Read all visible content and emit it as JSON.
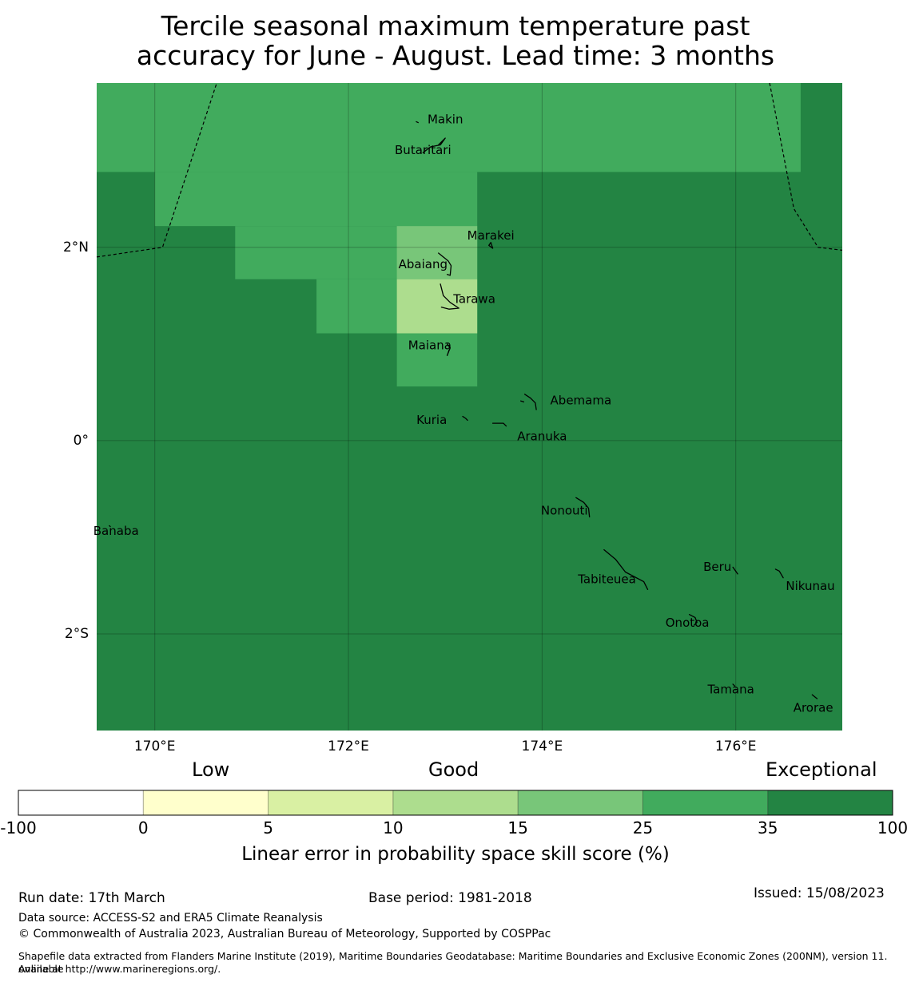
{
  "title": {
    "line1": "Tercile seasonal maximum temperature past",
    "line2": "accuracy for June - August. Lead time: 3 months"
  },
  "map": {
    "lon_range": [
      169.4,
      177.1
    ],
    "lat_range": [
      -3.0,
      3.7
    ],
    "lat_ticks": [
      {
        "value": 2,
        "label": "2°N"
      },
      {
        "value": 0,
        "label": "0°"
      },
      {
        "value": -2,
        "label": "2°S"
      }
    ],
    "lon_ticks": [
      {
        "value": 170,
        "label": "170°E"
      },
      {
        "value": 172,
        "label": "172°E"
      },
      {
        "value": 174,
        "label": "174°E"
      },
      {
        "value": 176,
        "label": "176°E"
      }
    ],
    "background_color": "#238443",
    "skill_cells": [
      {
        "lon0": 169.4,
        "lon1": 176.67,
        "lat0": 2.78,
        "lat1": 3.7,
        "color": "#41ab5d"
      },
      {
        "lon0": 170.0,
        "lon1": 173.33,
        "lat0": 2.22,
        "lat1": 2.78,
        "color": "#41ab5d"
      },
      {
        "lon0": 170.83,
        "lon1": 173.33,
        "lat0": 1.67,
        "lat1": 2.22,
        "color": "#41ab5d"
      },
      {
        "lon0": 171.67,
        "lon1": 173.33,
        "lat0": 1.11,
        "lat1": 1.67,
        "color": "#41ab5d"
      },
      {
        "lon0": 172.5,
        "lon1": 173.33,
        "lat0": 0.56,
        "lat1": 1.11,
        "color": "#41ab5d"
      },
      {
        "lon0": 172.5,
        "lon1": 173.33,
        "lat0": 1.67,
        "lat1": 2.22,
        "color": "#78c679"
      },
      {
        "lon0": 172.5,
        "lon1": 173.33,
        "lat0": 1.11,
        "lat1": 1.67,
        "color": "#addd8e"
      }
    ],
    "islands": [
      {
        "name": "Makin",
        "lon": 173.0,
        "lat": 3.32
      },
      {
        "name": "Butaritari",
        "lon": 172.77,
        "lat": 3.0
      },
      {
        "name": "Marakei",
        "lon": 173.47,
        "lat": 2.12
      },
      {
        "name": "Abaiang",
        "lon": 172.77,
        "lat": 1.82
      },
      {
        "name": "Tarawa",
        "lon": 173.3,
        "lat": 1.46
      },
      {
        "name": "Maiana",
        "lon": 172.84,
        "lat": 0.98
      },
      {
        "name": "Abemama",
        "lon": 174.4,
        "lat": 0.41
      },
      {
        "name": "Kuria",
        "lon": 172.86,
        "lat": 0.21
      },
      {
        "name": "Aranuka",
        "lon": 174.0,
        "lat": 0.04
      },
      {
        "name": "Banaba",
        "lon": 169.6,
        "lat": -0.94
      },
      {
        "name": "Nonouti",
        "lon": 174.23,
        "lat": -0.73
      },
      {
        "name": "Tabiteuea",
        "lon": 174.67,
        "lat": -1.44
      },
      {
        "name": "Beru",
        "lon": 175.81,
        "lat": -1.31
      },
      {
        "name": "Nikunau",
        "lon": 176.77,
        "lat": -1.51
      },
      {
        "name": "Onotoa",
        "lon": 175.5,
        "lat": -1.89
      },
      {
        "name": "Tamana",
        "lon": 175.95,
        "lat": -2.58
      },
      {
        "name": "Arorae",
        "lon": 176.8,
        "lat": -2.77
      }
    ],
    "eez_boundaries": [
      [
        [
          169.4,
          1.9
        ],
        [
          170.08,
          2.0
        ],
        [
          170.64,
          3.7
        ]
      ],
      [
        [
          176.35,
          3.7
        ],
        [
          176.6,
          2.4
        ],
        [
          176.85,
          2.0
        ],
        [
          177.1,
          1.97
        ]
      ]
    ],
    "island_shapes": [
      [
        [
          172.7,
          3.3
        ],
        [
          172.72,
          3.29
        ]
      ],
      [
        [
          172.77,
          2.98
        ],
        [
          172.85,
          3.04
        ],
        [
          172.95,
          3.06
        ],
        [
          173.0,
          3.13
        ],
        [
          172.93,
          3.06
        ]
      ],
      [
        [
          173.47,
          2.05
        ],
        [
          173.45,
          2.02
        ],
        [
          173.49,
          1.99
        ],
        [
          173.47,
          2.05
        ]
      ],
      [
        [
          172.93,
          1.94
        ],
        [
          173.03,
          1.86
        ],
        [
          173.06,
          1.81
        ],
        [
          173.05,
          1.71
        ],
        [
          173.02,
          1.72
        ]
      ],
      [
        [
          172.95,
          1.62
        ],
        [
          172.98,
          1.5
        ],
        [
          173.05,
          1.43
        ],
        [
          173.14,
          1.37
        ],
        [
          173.04,
          1.36
        ],
        [
          172.96,
          1.38
        ]
      ],
      [
        [
          173.02,
          1.0
        ],
        [
          173.05,
          0.96
        ],
        [
          173.02,
          0.88
        ],
        [
          173.04,
          0.94
        ]
      ],
      [
        [
          173.82,
          0.48
        ],
        [
          173.88,
          0.44
        ],
        [
          173.93,
          0.39
        ],
        [
          173.94,
          0.32
        ]
      ],
      [
        [
          173.78,
          0.41
        ],
        [
          173.81,
          0.4
        ]
      ],
      [
        [
          173.18,
          0.25
        ],
        [
          173.21,
          0.23
        ],
        [
          173.23,
          0.21
        ]
      ],
      [
        [
          173.49,
          0.18
        ],
        [
          173.55,
          0.18
        ],
        [
          173.6,
          0.18
        ],
        [
          173.63,
          0.15
        ]
      ],
      [
        [
          174.35,
          -0.59
        ],
        [
          174.43,
          -0.64
        ],
        [
          174.48,
          -0.7
        ],
        [
          174.49,
          -0.79
        ]
      ],
      [
        [
          174.64,
          -1.13
        ],
        [
          174.76,
          -1.23
        ],
        [
          174.86,
          -1.36
        ],
        [
          175.05,
          -1.46
        ],
        [
          175.09,
          -1.54
        ]
      ],
      [
        [
          175.97,
          -1.31
        ],
        [
          176.02,
          -1.38
        ]
      ],
      [
        [
          176.41,
          -1.33
        ],
        [
          176.45,
          -1.35
        ],
        [
          176.49,
          -1.42
        ]
      ],
      [
        [
          175.52,
          -1.8
        ],
        [
          175.58,
          -1.83
        ],
        [
          175.6,
          -1.88
        ],
        [
          175.57,
          -1.91
        ]
      ],
      [
        [
          175.97,
          -2.52
        ],
        [
          175.99,
          -2.54
        ]
      ],
      [
        [
          176.79,
          -2.63
        ],
        [
          176.84,
          -2.67
        ]
      ],
      [
        [
          169.53,
          -0.88
        ],
        [
          169.54,
          -0.89
        ]
      ]
    ]
  },
  "colorbar": {
    "category_labels": [
      "Low",
      "Good",
      "Exceptional"
    ],
    "bins": [
      {
        "from": "-100",
        "color": "#ffffff"
      },
      {
        "from": "0",
        "color": "#ffffcc"
      },
      {
        "from": "5",
        "color": "#d9f0a3"
      },
      {
        "from": "10",
        "color": "#addd8e"
      },
      {
        "from": "15",
        "color": "#78c679"
      },
      {
        "from": "25",
        "color": "#41ab5d"
      },
      {
        "from": "35",
        "color": "#238443"
      }
    ],
    "tick_labels": [
      "-100",
      "0",
      "5",
      "10",
      "15",
      "25",
      "35",
      "100"
    ],
    "xlabel": "Linear error in probability space skill score (%)"
  },
  "footer": {
    "run_date": "Run date: 17th March",
    "base_period": "Base period: 1981-2018",
    "issued": "Issued: 15/08/2023",
    "data_source": "Data source: ACCESS-S2 and ERA5 Climate Reanalysis",
    "copyright": "© Commonwealth of Australia 2023, Australian Bureau of Meteorology, Supported by COSPPac",
    "shapefile_line1": "Shapefile data extracted from Flanders Marine Institute (2019), Maritime Boundaries Geodatabase: Maritime Boundaries and Exclusive Economic Zones (200NM), version 11. Available",
    "shapefile_line2": "online at http://www.marineregions.org/."
  }
}
